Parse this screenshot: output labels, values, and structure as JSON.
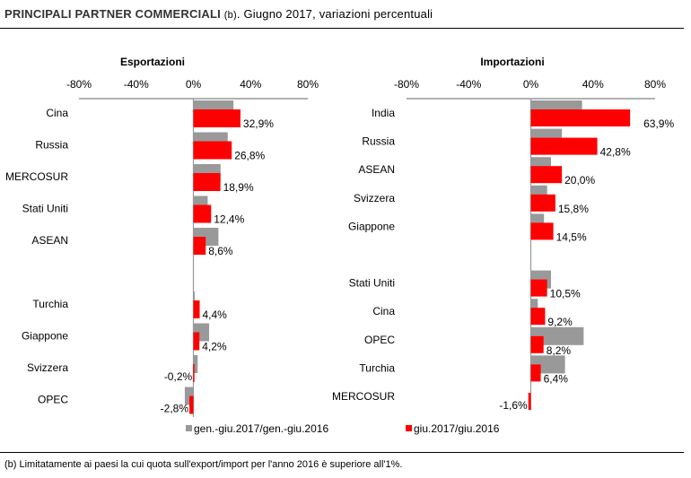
{
  "header": {
    "title_bold": "PRINCIPALI PARTNER COMMERCIALI",
    "title_note": "(b)",
    "title_rest": ". Giugno 2017,  variazioni percentuali"
  },
  "footnote": "(b) Limitatamente ai paesi la cui quota sull'export/import per l'anno 2016 è superiore all'1%.",
  "colors": {
    "gray": "#999999",
    "red": "#ff0000",
    "axis": "#999999"
  },
  "chart_data": [
    {
      "type": "bar",
      "orientation": "horizontal",
      "title": "Esportazioni",
      "xlim": [
        -80,
        80
      ],
      "xticks": [
        "-80%",
        "-40%",
        "0%",
        "40%",
        "80%"
      ],
      "xtick_values": [
        -80,
        -40,
        0,
        40,
        80
      ],
      "categories": [
        "Cina",
        "Russia",
        "MERCOSUR",
        "Stati Uniti",
        "ASEAN",
        "",
        "Turchia",
        "Giappone",
        "Svizzera",
        "OPEC"
      ],
      "series": [
        {
          "name": "gen.-giu.2017/gen.-giu.2016",
          "color": "#999999",
          "values": [
            28,
            24,
            19,
            10,
            17.5,
            null,
            1,
            11,
            3,
            -6
          ]
        },
        {
          "name": "giu.2017/giu.2016",
          "color": "#ff0000",
          "values": [
            32.9,
            26.8,
            18.9,
            12.4,
            8.6,
            null,
            4.4,
            4.2,
            -0.2,
            -2.8
          ]
        }
      ],
      "data_labels": [
        "32,9%",
        "26,8%",
        "18,9%",
        "12,4%",
        "8,6%",
        "",
        "4,4%",
        "4,2%",
        "-0,2%",
        "-2,8%"
      ]
    },
    {
      "type": "bar",
      "orientation": "horizontal",
      "title": "Importazioni",
      "xlim": [
        -80,
        80
      ],
      "xticks": [
        "-80%",
        "-40%",
        "0%",
        "40%",
        "80%"
      ],
      "xtick_values": [
        -80,
        -40,
        0,
        40,
        80
      ],
      "categories": [
        "India",
        "Russia",
        "ASEAN",
        "Svizzera",
        "Giappone",
        "",
        "Stati Uniti",
        "Cina",
        "OPEC",
        "Turchia",
        "MERCOSUR"
      ],
      "series": [
        {
          "name": "gen.-giu.2017/gen.-giu.2016",
          "color": "#999999",
          "values": [
            33,
            20,
            13,
            10.5,
            8.5,
            null,
            13,
            4.5,
            34,
            22,
            0
          ]
        },
        {
          "name": "giu.2017/giu.2016",
          "color": "#ff0000",
          "values": [
            63.9,
            42.8,
            20.0,
            15.8,
            14.5,
            null,
            10.5,
            9.2,
            8.2,
            6.4,
            -1.6
          ]
        }
      ],
      "data_labels": [
        "63,9%",
        "42,8%",
        "20,0%",
        "15,8%",
        "14,5%",
        "",
        "10,5%",
        "9,2%",
        "8,2%",
        "6,4%",
        "-1,6%"
      ]
    }
  ],
  "legend": [
    {
      "label": "gen.-giu.2017/gen.-giu.2016",
      "color": "#999999"
    },
    {
      "label": "giu.2017/giu.2016",
      "color": "#ff0000"
    }
  ]
}
